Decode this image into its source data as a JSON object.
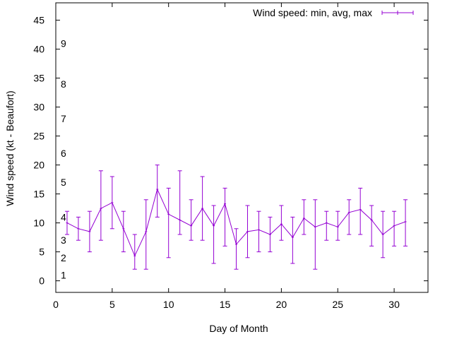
{
  "chart_data": {
    "type": "line",
    "title": "",
    "xlabel": "Day of Month",
    "ylabel": "Wind speed (kt - Beaufort)",
    "xlim": [
      0,
      33
    ],
    "ylim": [
      -2,
      48
    ],
    "xticks": [
      0,
      5,
      10,
      15,
      20,
      25,
      30
    ],
    "yticks": [
      0,
      5,
      10,
      15,
      20,
      25,
      30,
      35,
      40,
      45
    ],
    "grid": false,
    "legend_position": "top-right",
    "series": [
      {
        "name": "Wind speed: min, avg, max",
        "color": "#9400d3",
        "style": "errorbars-lines",
        "x": [
          1,
          2,
          3,
          4,
          5,
          6,
          7,
          8,
          9,
          10,
          11,
          12,
          13,
          14,
          15,
          16,
          17,
          18,
          19,
          20,
          21,
          22,
          23,
          24,
          25,
          26,
          27,
          28,
          29,
          30,
          31
        ],
        "avg": [
          10,
          9,
          8.5,
          12.5,
          13.5,
          9,
          4.3,
          8.5,
          15.8,
          11.5,
          10.5,
          9.5,
          12.5,
          9.5,
          13.3,
          6.3,
          8.5,
          8.8,
          8,
          9.8,
          7.5,
          10.8,
          9.3,
          10,
          9.3,
          11.8,
          12.3,
          10.5,
          8,
          9.5,
          10.2
        ],
        "min": [
          8,
          7,
          5,
          7,
          9,
          5,
          2,
          2,
          11,
          4,
          8,
          7,
          7,
          3,
          6,
          2,
          4,
          5,
          5,
          7,
          3,
          8,
          2,
          7,
          7,
          8,
          8,
          6,
          4,
          6,
          6
        ],
        "max": [
          12,
          11,
          12,
          19,
          18,
          12,
          8,
          14,
          20,
          16,
          19,
          14,
          18,
          13,
          16,
          9,
          13,
          12,
          11,
          13,
          11,
          14,
          14,
          12,
          12,
          14,
          16,
          13,
          12,
          12,
          14
        ]
      }
    ],
    "beaufort_labels": [
      {
        "text": "1",
        "y": 1
      },
      {
        "text": "2",
        "y": 4
      },
      {
        "text": "3",
        "y": 7
      },
      {
        "text": "4",
        "y": 11
      },
      {
        "text": "5",
        "y": 17
      },
      {
        "text": "6",
        "y": 22
      },
      {
        "text": "7",
        "y": 28
      },
      {
        "text": "8",
        "y": 34
      },
      {
        "text": "9",
        "y": 41
      }
    ]
  }
}
